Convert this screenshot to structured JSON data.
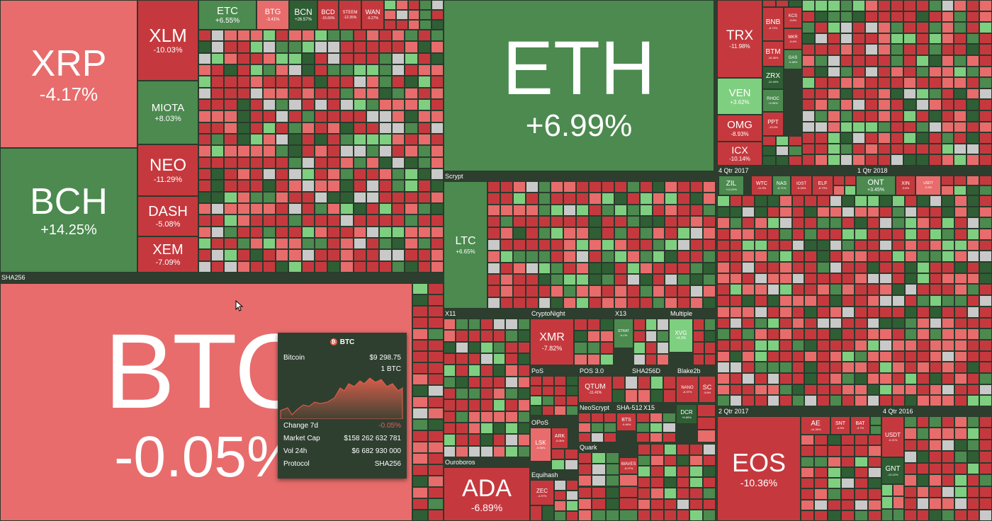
{
  "colors": {
    "red": "#e86c6c",
    "dark_red": "#c5393e",
    "green": "#4c8a4f",
    "light_green": "#7fcf80",
    "background": "#2d3e2f"
  },
  "groups": {
    "sha256": "SHA256",
    "scrypt": "Scrypt",
    "x11": "X11",
    "cryptonight": "CryptoNight",
    "x13": "X13",
    "multiple": "Multiple",
    "pos": "PoS",
    "pos3": "POS 3.0",
    "sha256d": "SHA256D",
    "blake2b": "Blake2b",
    "neoscrypt": "NeoScrypt",
    "sha512": "SHA-512",
    "x15": "X15",
    "opos": "OPoS",
    "quark": "Quark",
    "ouroboros": "Ouroboros",
    "equihash": "Equihash",
    "q4_2017": "4 Qtr 2017",
    "q1_2018": "1 Qtr 2018",
    "q2_2017": "2 Qtr 2017",
    "q4_2016": "4 Qtr 2016"
  },
  "tiles": {
    "xrp": {
      "sym": "XRP",
      "chg": "-4.17%"
    },
    "bch": {
      "sym": "BCH",
      "chg": "+14.25%"
    },
    "xlm": {
      "sym": "XLM",
      "chg": "-10.03%"
    },
    "miota": {
      "sym": "MIOTA",
      "chg": "+8.03%"
    },
    "neo": {
      "sym": "NEO",
      "chg": "-11.29%"
    },
    "dash": {
      "sym": "DASH",
      "chg": "-5.08%"
    },
    "xem": {
      "sym": "XEM",
      "chg": "-7.09%"
    },
    "etc": {
      "sym": "ETC",
      "chg": "+6.55%"
    },
    "btg": {
      "sym": "BTG",
      "chg": "-3.41%"
    },
    "bcn": {
      "sym": "BCN",
      "chg": "+26.57%"
    },
    "bcd": {
      "sym": "BCD",
      "chg": "-15.66%"
    },
    "steem": {
      "sym": "STEEM",
      "chg": "-12.35%"
    },
    "wan": {
      "sym": "WAN",
      "chg": "-6.27%"
    },
    "eth": {
      "sym": "ETH",
      "chg": "+6.99%"
    },
    "btc": {
      "sym": "BTC",
      "chg": "-0.05%"
    },
    "ltc": {
      "sym": "LTC",
      "chg": "+6.65%"
    },
    "xmr": {
      "sym": "XMR",
      "chg": "-7.82%"
    },
    "xvg": {
      "sym": "XVG",
      "chg": "+4.3%"
    },
    "strat": {
      "sym": "STRAT",
      "chg": "-6.1%"
    },
    "qtum": {
      "sym": "QTUM",
      "chg": "-11.41%"
    },
    "nano": {
      "sym": "NANO",
      "chg": "-8.37%"
    },
    "sc": {
      "sym": "SC",
      "chg": "-9.8%"
    },
    "dcr": {
      "sym": "DCR",
      "chg": "+6.65%"
    },
    "bts": {
      "sym": "BTS",
      "chg": "-9.46%"
    },
    "waves": {
      "sym": "WAVES",
      "chg": "-8.27%"
    },
    "lsk": {
      "sym": "LSK",
      "chg": "-9.98%"
    },
    "ark": {
      "sym": "ARK",
      "chg": "-5.06%"
    },
    "ada": {
      "sym": "ADA",
      "chg": "-6.89%"
    },
    "zec": {
      "sym": "ZEC",
      "chg": "-4.97%"
    },
    "trx": {
      "sym": "TRX",
      "chg": "-11.98%"
    },
    "bnb": {
      "sym": "BNB",
      "chg": "-6.72%"
    },
    "kcs": {
      "sym": "KCS",
      "chg": "-9.6%"
    },
    "btm": {
      "sym": "BTM",
      "chg": "-16.36%"
    },
    "mkr": {
      "sym": "MKR",
      "chg": "-9.4%"
    },
    "gas": {
      "sym": "GAS",
      "chg": "-9.48%"
    },
    "zrx": {
      "sym": "ZRX",
      "chg": "-12.49%"
    },
    "ven": {
      "sym": "VEN",
      "chg": "+3.62%"
    },
    "rhoc": {
      "sym": "RHOC",
      "chg": "+4.06%"
    },
    "omg": {
      "sym": "OMG",
      "chg": "-8.93%"
    },
    "ppt": {
      "sym": "PPT",
      "chg": "-13.4%"
    },
    "icx": {
      "sym": "ICX",
      "chg": "-10.14%"
    },
    "zil": {
      "sym": "ZIL",
      "chg": "+13.29%"
    },
    "wtc": {
      "sym": "WTC",
      "chg": "-11.9%"
    },
    "nas": {
      "sym": "NAS",
      "chg": "-8.71%"
    },
    "iost": {
      "sym": "IOST",
      "chg": "-9.18%"
    },
    "elf": {
      "sym": "ELF",
      "chg": "-8.73%"
    },
    "ont": {
      "sym": "ONT",
      "chg": "+3.45%"
    },
    "xin": {
      "sym": "XIN",
      "chg": "-9.6%"
    },
    "usdt_small": {
      "sym": "USDT",
      "chg": "-0.3%"
    },
    "eos": {
      "sym": "EOS",
      "chg": "-10.36%"
    },
    "ae": {
      "sym": "AE",
      "chg": "-14.35%"
    },
    "snt": {
      "sym": "SNT",
      "chg": "-9.3%"
    },
    "bat": {
      "sym": "BAT",
      "chg": "-9.7%"
    },
    "usdt": {
      "sym": "USDT",
      "chg": "-0.21%"
    },
    "gnt": {
      "sym": "GNT",
      "chg": "-13.22%"
    }
  },
  "tooltip": {
    "symbol": "BTC",
    "icon": "bitcoin-icon",
    "name": "Bitcoin",
    "price": "$9 298.75",
    "unit": "1 BTC",
    "change_label": "Change 7d",
    "change_value": "-0.05%",
    "mcap_label": "Market Cap",
    "mcap_value": "$158 262 632 781",
    "vol_label": "Vol 24h",
    "vol_value": "$6 682 930 000",
    "protocol_label": "Protocol",
    "protocol_value": "SHA256"
  }
}
